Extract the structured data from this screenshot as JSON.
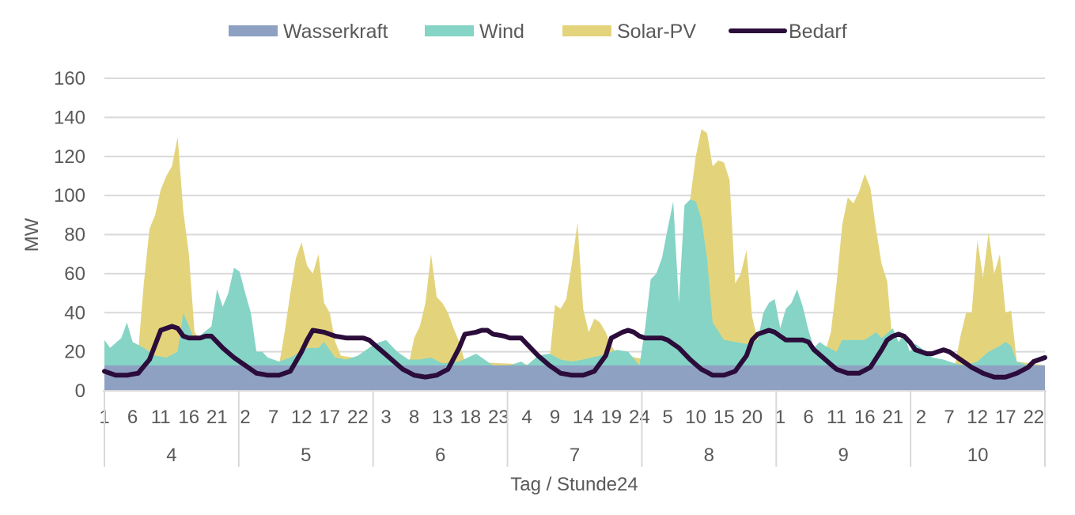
{
  "chart_data": {
    "type": "area",
    "xlabel": "Tag / Stunde24",
    "ylabel": "MW",
    "ylim": [
      0,
      160
    ],
    "yticks": [
      0,
      20,
      40,
      60,
      80,
      100,
      120,
      140,
      160
    ],
    "grid": true,
    "legend_position": "top",
    "hour_labels": [
      "1",
      "6",
      "11",
      "16",
      "21"
    ],
    "x": {
      "days": [
        "4",
        "5",
        "6",
        "7",
        "8",
        "9",
        "10"
      ],
      "hours_per_day": 24,
      "hour_tick_every": 5
    },
    "series": [
      {
        "name": "Wasserkraft",
        "kind": "stacked-area",
        "color": "#8ea1c3",
        "anchors": [
          [
            0,
            13
          ],
          [
            167,
            13
          ]
        ]
      },
      {
        "name": "Wind",
        "kind": "stacked-area",
        "color": "#85d4c5",
        "anchors": [
          [
            0,
            26
          ],
          [
            1,
            22
          ],
          [
            3,
            27
          ],
          [
            4,
            35
          ],
          [
            5,
            25
          ],
          [
            7,
            22
          ],
          [
            9,
            18
          ],
          [
            11,
            17
          ],
          [
            13,
            20
          ],
          [
            14,
            40
          ],
          [
            16,
            26
          ],
          [
            19,
            33
          ],
          [
            20,
            52
          ],
          [
            21,
            43
          ],
          [
            22,
            50
          ],
          [
            23,
            63
          ],
          [
            24,
            61
          ],
          [
            25,
            50
          ],
          [
            26,
            40
          ],
          [
            27,
            20
          ],
          [
            28,
            20
          ],
          [
            29,
            17
          ],
          [
            31,
            15
          ],
          [
            33,
            17
          ],
          [
            35,
            20
          ],
          [
            36,
            22
          ],
          [
            38,
            22
          ],
          [
            39,
            25
          ],
          [
            41,
            17
          ],
          [
            43,
            16
          ],
          [
            45,
            18
          ],
          [
            47,
            22
          ],
          [
            48,
            24
          ],
          [
            50,
            26
          ],
          [
            52,
            20
          ],
          [
            54,
            16
          ],
          [
            56,
            16
          ],
          [
            58,
            17
          ],
          [
            60,
            14
          ],
          [
            63,
            15
          ],
          [
            66,
            19
          ],
          [
            69,
            13
          ],
          [
            72,
            13
          ],
          [
            74,
            15
          ],
          [
            75,
            13
          ],
          [
            77,
            18
          ],
          [
            79,
            19
          ],
          [
            81,
            16
          ],
          [
            83,
            15
          ],
          [
            85,
            16
          ],
          [
            88,
            18
          ],
          [
            91,
            21
          ],
          [
            93,
            20
          ],
          [
            95,
            13
          ],
          [
            96,
            32
          ],
          [
            97,
            57
          ],
          [
            98,
            60
          ],
          [
            99,
            68
          ],
          [
            100,
            83
          ],
          [
            101,
            97
          ],
          [
            102,
            45
          ],
          [
            103,
            95
          ],
          [
            104,
            98
          ],
          [
            105,
            97
          ],
          [
            106,
            88
          ],
          [
            107,
            68
          ],
          [
            108,
            35
          ],
          [
            110,
            26
          ],
          [
            112,
            25
          ],
          [
            114,
            24
          ],
          [
            116,
            26
          ],
          [
            117,
            40
          ],
          [
            118,
            45
          ],
          [
            119,
            47
          ],
          [
            120,
            32
          ],
          [
            121,
            42
          ],
          [
            122,
            45
          ],
          [
            123,
            52
          ],
          [
            124,
            43
          ],
          [
            125,
            31
          ],
          [
            126,
            22
          ],
          [
            127,
            25
          ],
          [
            128,
            23
          ],
          [
            130,
            20
          ],
          [
            131,
            26
          ],
          [
            133,
            26
          ],
          [
            135,
            26
          ],
          [
            137,
            30
          ],
          [
            138,
            27
          ],
          [
            140,
            32
          ],
          [
            141,
            25
          ],
          [
            142,
            29
          ],
          [
            143,
            20
          ],
          [
            144,
            24
          ],
          [
            145,
            22
          ],
          [
            147,
            17
          ],
          [
            149,
            16
          ],
          [
            151,
            14
          ],
          [
            153,
            13
          ],
          [
            155,
            15
          ],
          [
            157,
            20
          ],
          [
            159,
            23
          ],
          [
            160,
            25
          ],
          [
            161,
            23
          ],
          [
            162,
            15
          ],
          [
            164,
            13
          ],
          [
            167,
            13
          ]
        ]
      },
      {
        "name": "Solar-PV",
        "kind": "stacked-area",
        "color": "#e3d47c",
        "anchors": [
          [
            0,
            13
          ],
          [
            5,
            13
          ],
          [
            6,
            20
          ],
          [
            7,
            55
          ],
          [
            8,
            83
          ],
          [
            9,
            90
          ],
          [
            10,
            103
          ],
          [
            11,
            110
          ],
          [
            12,
            115
          ],
          [
            13,
            130
          ],
          [
            14,
            92
          ],
          [
            15,
            70
          ],
          [
            16,
            30
          ],
          [
            17,
            26
          ],
          [
            18,
            26
          ],
          [
            24,
            26
          ],
          [
            29,
            13
          ],
          [
            31,
            13
          ],
          [
            32,
            30
          ],
          [
            33,
            50
          ],
          [
            34,
            68
          ],
          [
            35,
            76
          ],
          [
            36,
            64
          ],
          [
            37,
            60
          ],
          [
            38,
            70
          ],
          [
            39,
            45
          ],
          [
            40,
            40
          ],
          [
            41,
            25
          ],
          [
            42,
            18
          ],
          [
            53,
            13
          ],
          [
            54,
            13
          ],
          [
            55,
            27
          ],
          [
            56,
            33
          ],
          [
            57,
            45
          ],
          [
            58,
            70
          ],
          [
            59,
            48
          ],
          [
            60,
            45
          ],
          [
            61,
            40
          ],
          [
            62,
            32
          ],
          [
            63,
            25
          ],
          [
            64,
            15
          ],
          [
            78,
            13
          ],
          [
            79,
            15
          ],
          [
            80,
            44
          ],
          [
            81,
            42
          ],
          [
            82,
            47
          ],
          [
            83,
            65
          ],
          [
            84,
            86
          ],
          [
            85,
            42
          ],
          [
            86,
            30
          ],
          [
            87,
            37
          ],
          [
            88,
            35
          ],
          [
            89,
            30
          ],
          [
            90,
            23
          ],
          [
            91,
            19
          ],
          [
            101,
            13
          ],
          [
            102,
            30
          ],
          [
            103,
            60
          ],
          [
            104,
            98
          ],
          [
            105,
            120
          ],
          [
            106,
            134
          ],
          [
            107,
            132
          ],
          [
            108,
            115
          ],
          [
            109,
            118
          ],
          [
            110,
            117
          ],
          [
            111,
            108
          ],
          [
            112,
            55
          ],
          [
            113,
            60
          ],
          [
            114,
            72
          ],
          [
            115,
            38
          ],
          [
            116,
            26
          ],
          [
            127,
            13
          ],
          [
            128,
            20
          ],
          [
            129,
            30
          ],
          [
            130,
            55
          ],
          [
            131,
            85
          ],
          [
            132,
            99
          ],
          [
            133,
            96
          ],
          [
            134,
            102
          ],
          [
            135,
            111
          ],
          [
            136,
            104
          ],
          [
            137,
            83
          ],
          [
            138,
            65
          ],
          [
            139,
            56
          ],
          [
            140,
            22
          ],
          [
            150,
            13
          ],
          [
            151,
            13
          ],
          [
            152,
            28
          ],
          [
            153,
            40
          ],
          [
            154,
            40
          ],
          [
            155,
            77
          ],
          [
            156,
            58
          ],
          [
            157,
            81
          ],
          [
            158,
            60
          ],
          [
            159,
            70
          ],
          [
            160,
            40
          ],
          [
            161,
            41
          ],
          [
            162,
            15
          ],
          [
            167,
            13
          ]
        ]
      },
      {
        "name": "Bedarf",
        "kind": "line",
        "color": "#2b0c3a",
        "anchors": [
          [
            0,
            10
          ],
          [
            2,
            8
          ],
          [
            4,
            8
          ],
          [
            6,
            9
          ],
          [
            8,
            16
          ],
          [
            10,
            31
          ],
          [
            11,
            32
          ],
          [
            12,
            33
          ],
          [
            13,
            32
          ],
          [
            14,
            28
          ],
          [
            15,
            27
          ],
          [
            16,
            27
          ],
          [
            17,
            27
          ],
          [
            18,
            28
          ],
          [
            19,
            28
          ],
          [
            21,
            22
          ],
          [
            23,
            17
          ],
          [
            25,
            13
          ],
          [
            27,
            9
          ],
          [
            29,
            8
          ],
          [
            31,
            8
          ],
          [
            33,
            10
          ],
          [
            35,
            20
          ],
          [
            36,
            26
          ],
          [
            37,
            31
          ],
          [
            39,
            30
          ],
          [
            40,
            29
          ],
          [
            41,
            28
          ],
          [
            43,
            27
          ],
          [
            45,
            27
          ],
          [
            46,
            27
          ],
          [
            47,
            26
          ],
          [
            49,
            21
          ],
          [
            51,
            16
          ],
          [
            53,
            11
          ],
          [
            55,
            8
          ],
          [
            57,
            7
          ],
          [
            59,
            8
          ],
          [
            61,
            11
          ],
          [
            63,
            22
          ],
          [
            64,
            29
          ],
          [
            66,
            30
          ],
          [
            67,
            31
          ],
          [
            68,
            31
          ],
          [
            69,
            29
          ],
          [
            71,
            28
          ],
          [
            72,
            27
          ],
          [
            74,
            27
          ],
          [
            75,
            24
          ],
          [
            77,
            18
          ],
          [
            79,
            13
          ],
          [
            81,
            9
          ],
          [
            83,
            8
          ],
          [
            85,
            8
          ],
          [
            87,
            10
          ],
          [
            89,
            18
          ],
          [
            90,
            27
          ],
          [
            92,
            30
          ],
          [
            93,
            31
          ],
          [
            94,
            30
          ],
          [
            95,
            28
          ],
          [
            96,
            27
          ],
          [
            98,
            27
          ],
          [
            99,
            27
          ],
          [
            100,
            26
          ],
          [
            102,
            22
          ],
          [
            104,
            16
          ],
          [
            106,
            11
          ],
          [
            108,
            8
          ],
          [
            110,
            8
          ],
          [
            112,
            10
          ],
          [
            114,
            18
          ],
          [
            115,
            26
          ],
          [
            116,
            29
          ],
          [
            117,
            30
          ],
          [
            118,
            31
          ],
          [
            119,
            30
          ],
          [
            120,
            28
          ],
          [
            121,
            26
          ],
          [
            122,
            26
          ],
          [
            124,
            26
          ],
          [
            125,
            25
          ],
          [
            126,
            21
          ],
          [
            128,
            16
          ],
          [
            130,
            11
          ],
          [
            132,
            9
          ],
          [
            134,
            9
          ],
          [
            136,
            12
          ],
          [
            138,
            21
          ],
          [
            139,
            26
          ],
          [
            140,
            28
          ],
          [
            141,
            29
          ],
          [
            142,
            28
          ],
          [
            143,
            25
          ],
          [
            144,
            21
          ],
          [
            146,
            19
          ],
          [
            147,
            19
          ],
          [
            149,
            21
          ],
          [
            150,
            20
          ],
          [
            152,
            16
          ],
          [
            154,
            12
          ],
          [
            156,
            9
          ],
          [
            158,
            7
          ],
          [
            160,
            7
          ],
          [
            162,
            9
          ],
          [
            164,
            12
          ],
          [
            165,
            15
          ],
          [
            166,
            16
          ],
          [
            167,
            17
          ]
        ]
      }
    ]
  }
}
